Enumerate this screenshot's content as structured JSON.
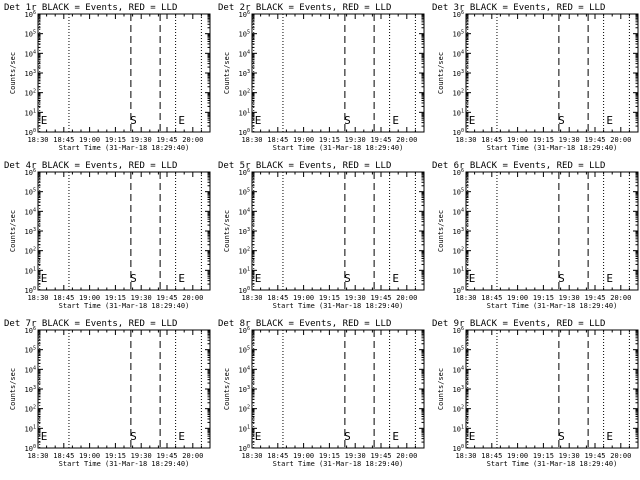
{
  "chart_data": [
    {
      "type": "line",
      "title": "Det 1r BLACK = Events, RED = LLD",
      "xlabel": "Start Time (31-Mar-18 18:29:40)",
      "ylabel": "Counts/sec",
      "x_range": [
        "18:30",
        "20:10"
      ],
      "y_range": [
        1,
        1000000.0
      ],
      "y_scale": "log",
      "xticks": [
        "18:30",
        "18:45",
        "19:00",
        "19:15",
        "19:30",
        "19:45",
        "20:00"
      ],
      "yticks": [
        "10^0",
        "10^1",
        "10^2",
        "10^3",
        "10^4",
        "10^5",
        "10^6"
      ],
      "dotted_lines": [
        "18:31",
        "18:48",
        "19:50",
        "20:05"
      ],
      "dashed_lines": [
        "19:24",
        "19:41"
      ],
      "markers": [
        {
          "text": "E",
          "x": "18:31"
        },
        {
          "text": "S",
          "x": "19:23"
        },
        {
          "text": "E",
          "x": "19:51"
        }
      ]
    },
    {
      "type": "line",
      "title": "Det 2r BLACK = Events, RED = LLD",
      "xlabel": "Start Time (31-Mar-18 18:29:40)",
      "ylabel": "Counts/sec",
      "x_range": [
        "18:30",
        "20:10"
      ],
      "y_range": [
        1,
        1000000.0
      ],
      "y_scale": "log",
      "xticks": [
        "18:30",
        "18:45",
        "19:00",
        "19:15",
        "19:30",
        "19:45",
        "20:00"
      ],
      "yticks": [
        "10^0",
        "10^1",
        "10^2",
        "10^3",
        "10^4",
        "10^5",
        "10^6"
      ],
      "dotted_lines": [
        "18:31",
        "18:48",
        "19:50",
        "20:05"
      ],
      "dashed_lines": [
        "19:24",
        "19:41"
      ],
      "markers": [
        {
          "text": "E",
          "x": "18:31"
        },
        {
          "text": "S",
          "x": "19:23"
        },
        {
          "text": "E",
          "x": "19:51"
        }
      ]
    },
    {
      "type": "line",
      "title": "Det 3r BLACK = Events, RED = LLD",
      "xlabel": "Start Time (31-Mar-18 18:29:40)",
      "ylabel": "Counts/sec",
      "x_range": [
        "18:30",
        "20:10"
      ],
      "y_range": [
        1,
        1000000.0
      ],
      "y_scale": "log",
      "xticks": [
        "18:30",
        "18:45",
        "19:00",
        "19:15",
        "19:30",
        "19:45",
        "20:00"
      ],
      "yticks": [
        "10^0",
        "10^1",
        "10^2",
        "10^3",
        "10^4",
        "10^5",
        "10^6"
      ],
      "dotted_lines": [
        "18:31",
        "18:48",
        "19:50",
        "20:05"
      ],
      "dashed_lines": [
        "19:24",
        "19:41"
      ],
      "markers": [
        {
          "text": "E",
          "x": "18:31"
        },
        {
          "text": "S",
          "x": "19:23"
        },
        {
          "text": "E",
          "x": "19:51"
        }
      ]
    },
    {
      "type": "line",
      "title": "Det 4r BLACK = Events, RED = LLD",
      "xlabel": "Start Time (31-Mar-18 18:29:40)",
      "ylabel": "Counts/sec",
      "x_range": [
        "18:30",
        "20:10"
      ],
      "y_range": [
        1,
        1000000.0
      ],
      "y_scale": "log",
      "xticks": [
        "18:30",
        "18:45",
        "19:00",
        "19:15",
        "19:30",
        "19:45",
        "20:00"
      ],
      "yticks": [
        "10^0",
        "10^1",
        "10^2",
        "10^3",
        "10^4",
        "10^5",
        "10^6"
      ],
      "dotted_lines": [
        "18:31",
        "18:48",
        "19:50",
        "20:05"
      ],
      "dashed_lines": [
        "19:24",
        "19:41"
      ],
      "markers": [
        {
          "text": "E",
          "x": "18:31"
        },
        {
          "text": "S",
          "x": "19:23"
        },
        {
          "text": "E",
          "x": "19:51"
        }
      ]
    },
    {
      "type": "line",
      "title": "Det 5r BLACK = Events, RED = LLD",
      "xlabel": "Start Time (31-Mar-18 18:29:40)",
      "ylabel": "Counts/sec",
      "x_range": [
        "18:30",
        "20:10"
      ],
      "y_range": [
        1,
        1000000.0
      ],
      "y_scale": "log",
      "xticks": [
        "18:30",
        "18:45",
        "19:00",
        "19:15",
        "19:30",
        "19:45",
        "20:00"
      ],
      "yticks": [
        "10^0",
        "10^1",
        "10^2",
        "10^3",
        "10^4",
        "10^5",
        "10^6"
      ],
      "dotted_lines": [
        "18:31",
        "18:48",
        "19:50",
        "20:05"
      ],
      "dashed_lines": [
        "19:24",
        "19:41"
      ],
      "markers": [
        {
          "text": "E",
          "x": "18:31"
        },
        {
          "text": "S",
          "x": "19:23"
        },
        {
          "text": "E",
          "x": "19:51"
        }
      ]
    },
    {
      "type": "line",
      "title": "Det 6r BLACK = Events, RED = LLD",
      "xlabel": "Start Time (31-Mar-18 18:29:40)",
      "ylabel": "Counts/sec",
      "x_range": [
        "18:30",
        "20:10"
      ],
      "y_range": [
        1,
        1000000.0
      ],
      "y_scale": "log",
      "xticks": [
        "18:30",
        "18:45",
        "19:00",
        "19:15",
        "19:30",
        "19:45",
        "20:00"
      ],
      "yticks": [
        "10^0",
        "10^1",
        "10^2",
        "10^3",
        "10^4",
        "10^5",
        "10^6"
      ],
      "dotted_lines": [
        "18:31",
        "18:48",
        "19:50",
        "20:05"
      ],
      "dashed_lines": [
        "19:24",
        "19:41"
      ],
      "markers": [
        {
          "text": "E",
          "x": "18:31"
        },
        {
          "text": "S",
          "x": "19:23"
        },
        {
          "text": "E",
          "x": "19:51"
        }
      ]
    },
    {
      "type": "line",
      "title": "Det 7r BLACK = Events, RED = LLD",
      "xlabel": "Start Time (31-Mar-18 18:29:40)",
      "ylabel": "Counts/sec",
      "x_range": [
        "18:30",
        "20:10"
      ],
      "y_range": [
        1,
        1000000.0
      ],
      "y_scale": "log",
      "xticks": [
        "18:30",
        "18:45",
        "19:00",
        "19:15",
        "19:30",
        "19:45",
        "20:00"
      ],
      "yticks": [
        "10^0",
        "10^1",
        "10^2",
        "10^3",
        "10^4",
        "10^5",
        "10^6"
      ],
      "dotted_lines": [
        "18:31",
        "18:48",
        "19:50",
        "20:05"
      ],
      "dashed_lines": [
        "19:24",
        "19:41"
      ],
      "markers": [
        {
          "text": "E",
          "x": "18:31"
        },
        {
          "text": "S",
          "x": "19:23"
        },
        {
          "text": "E",
          "x": "19:51"
        }
      ]
    },
    {
      "type": "line",
      "title": "Det 8r BLACK = Events, RED = LLD",
      "xlabel": "Start Time (31-Mar-18 18:29:40)",
      "ylabel": "Counts/sec",
      "x_range": [
        "18:30",
        "20:10"
      ],
      "y_range": [
        1,
        1000000.0
      ],
      "y_scale": "log",
      "xticks": [
        "18:30",
        "18:45",
        "19:00",
        "19:15",
        "19:30",
        "19:45",
        "20:00"
      ],
      "yticks": [
        "10^0",
        "10^1",
        "10^2",
        "10^3",
        "10^4",
        "10^5",
        "10^6"
      ],
      "dotted_lines": [
        "18:31",
        "18:48",
        "19:50",
        "20:05"
      ],
      "dashed_lines": [
        "19:24",
        "19:41"
      ],
      "markers": [
        {
          "text": "E",
          "x": "18:31"
        },
        {
          "text": "S",
          "x": "19:23"
        },
        {
          "text": "E",
          "x": "19:51"
        }
      ]
    },
    {
      "type": "line",
      "title": "Det 9r BLACK = Events, RED = LLD",
      "xlabel": "Start Time (31-Mar-18 18:29:40)",
      "ylabel": "Counts/sec",
      "x_range": [
        "18:30",
        "20:10"
      ],
      "y_range": [
        1,
        1000000.0
      ],
      "y_scale": "log",
      "xticks": [
        "18:30",
        "18:45",
        "19:00",
        "19:15",
        "19:30",
        "19:45",
        "20:00"
      ],
      "yticks": [
        "10^0",
        "10^1",
        "10^2",
        "10^3",
        "10^4",
        "10^5",
        "10^6"
      ],
      "dotted_lines": [
        "18:31",
        "18:48",
        "19:50",
        "20:05"
      ],
      "dashed_lines": [
        "19:24",
        "19:41"
      ],
      "markers": [
        {
          "text": "E",
          "x": "18:31"
        },
        {
          "text": "S",
          "x": "19:23"
        },
        {
          "text": "E",
          "x": "19:51"
        }
      ]
    }
  ]
}
